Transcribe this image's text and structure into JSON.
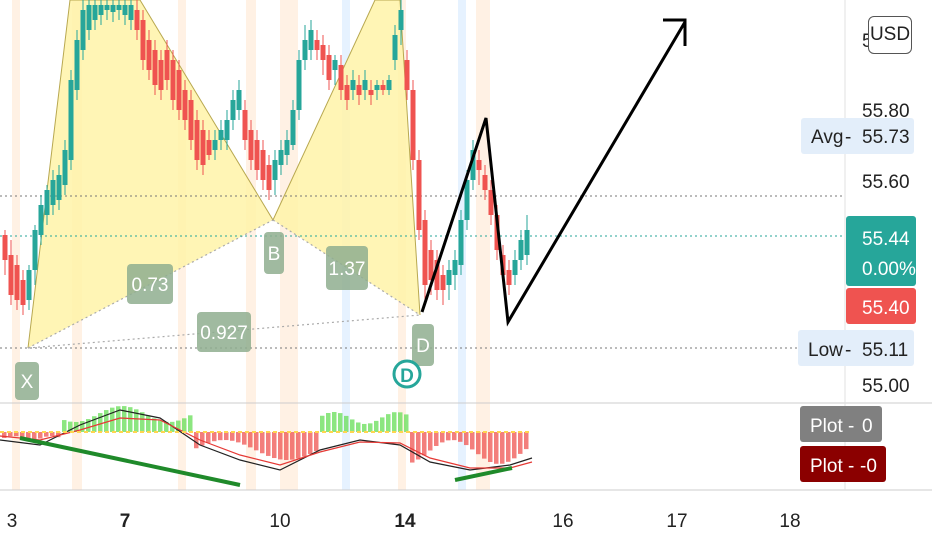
{
  "chart_data": {
    "type": "candlestick",
    "currency_button": "USD",
    "x_ticks": [
      {
        "label": "3",
        "bold": false
      },
      {
        "label": "7",
        "bold": true
      },
      {
        "label": "10",
        "bold": false
      },
      {
        "label": "14",
        "bold": true
      },
      {
        "label": "16",
        "bold": false
      },
      {
        "label": "17",
        "bold": false
      },
      {
        "label": "18",
        "bold": false
      }
    ],
    "y_ticks": [
      "55.80",
      "55.60",
      "55.00"
    ],
    "price_labels": {
      "avg": {
        "name": "Avg",
        "value": "55.73"
      },
      "last": {
        "value": "55.44",
        "change": "0.00%"
      },
      "other": {
        "value": "55.40"
      },
      "low": {
        "name": "Low",
        "value": "55.11"
      }
    },
    "pattern_labels": {
      "x": "X",
      "b": "B",
      "d": "D",
      "ratio_xb": "0.73",
      "ratio_bd": "1.37",
      "ratio_xd": "0.927",
      "marker": "D"
    },
    "indicator_labels": [
      {
        "name": "Plot",
        "value": "0"
      },
      {
        "name": "Plot",
        "value": "-0"
      }
    ],
    "colors": {
      "up": "#26a69a",
      "down": "#ef5350",
      "pattern_fill": "#fff3a8",
      "arrow": "#000000",
      "hist_up": "#66dd55",
      "hist_down": "#ef5350"
    }
  }
}
